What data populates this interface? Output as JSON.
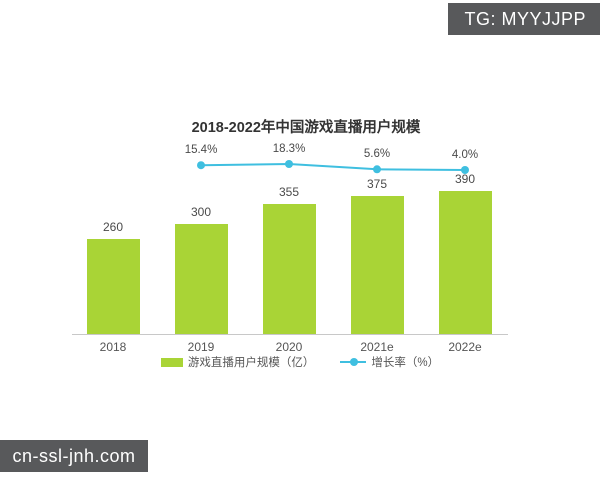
{
  "watermarks": {
    "top_right": "TG: MYYJJPP",
    "bottom_left": "cn-ssl-jnh.com"
  },
  "chart_data": {
    "type": "bar",
    "title": "2018-2022年中国游戏直播用户规模",
    "categories": [
      "2018",
      "2019",
      "2020",
      "2021e",
      "2022e"
    ],
    "series": [
      {
        "name": "游戏直播用户规模（亿）",
        "type": "bar",
        "values": [
          260,
          300,
          355,
          375,
          390
        ],
        "value_labels": [
          "260",
          "300",
          "355",
          "375",
          "390"
        ],
        "color": "#a9d436"
      },
      {
        "name": "增长率（%）",
        "type": "line",
        "categories": [
          "2019",
          "2020",
          "2021e",
          "2022e"
        ],
        "values": [
          15.4,
          18.3,
          5.6,
          4.0
        ],
        "value_labels": [
          "15.4%",
          "18.3%",
          "5.6%",
          "4.0%"
        ],
        "color": "#3fbfe0"
      }
    ],
    "legend_position": "bottom",
    "grid": false,
    "ylim": [
      0,
      520
    ],
    "colors": {
      "bar": "#a9d436",
      "line": "#3fbfe0",
      "axis": "#c8c8c8",
      "text": "#4a4a4a",
      "badge_bg": "#58595b",
      "badge_text": "#ffffff"
    }
  }
}
